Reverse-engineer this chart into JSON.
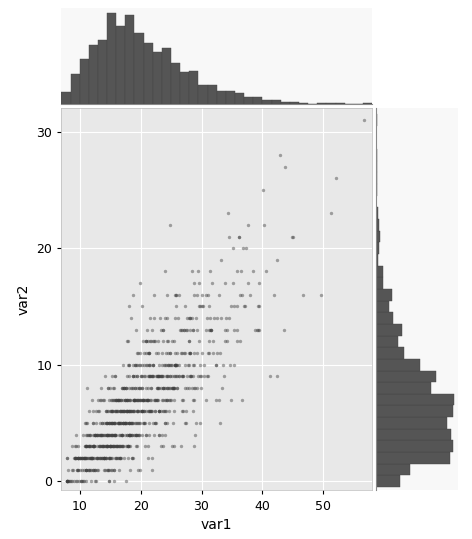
{
  "scatter_color": "#404040",
  "scatter_alpha": 0.45,
  "scatter_size": 6,
  "hist_color": "#555555",
  "hist_edgecolor": "#444444",
  "bg_color": "#e8e8e8",
  "grid_color": "#ffffff",
  "xlabel": "var1",
  "ylabel": "var2",
  "xlim": [
    7,
    58
  ],
  "ylim": [
    -0.8,
    32
  ],
  "xticks": [
    10,
    20,
    30,
    40,
    50
  ],
  "yticks": [
    0,
    10,
    20,
    30
  ],
  "n_points": 1000,
  "seed": 7,
  "axis_label_fontsize": 10,
  "tick_fontsize": 9
}
